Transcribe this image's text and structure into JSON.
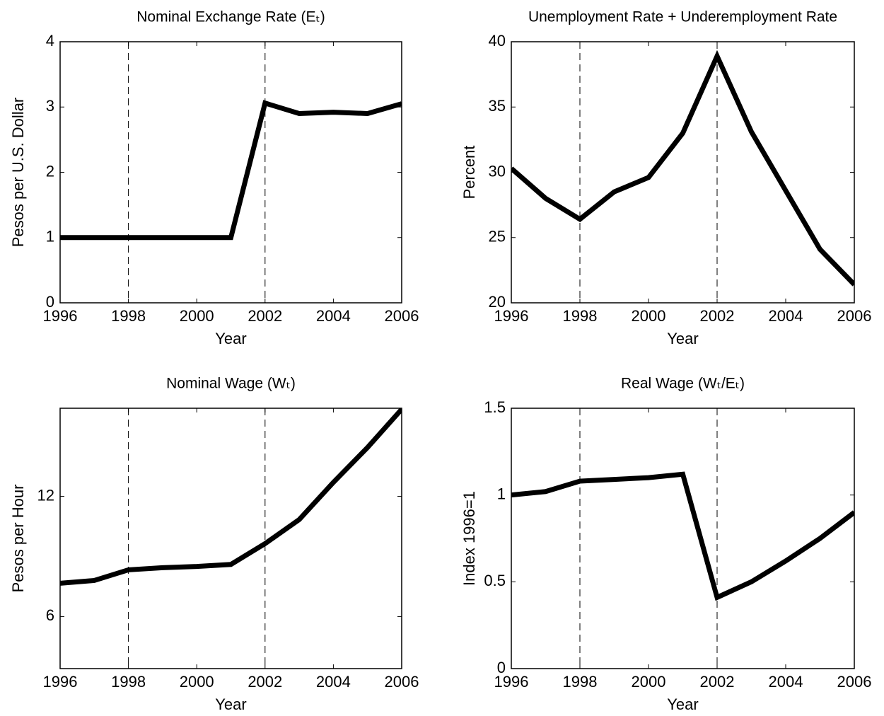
{
  "chart_data": [
    {
      "type": "line",
      "title": "Nominal Exchange Rate (Eₜ)",
      "xlabel": "Year",
      "ylabel": "Pesos per U.S. Dollar",
      "x": [
        1996,
        1997,
        1998,
        1999,
        2000,
        2001,
        2002,
        2003,
        2004,
        2005,
        2006
      ],
      "values": [
        1,
        1,
        1,
        1,
        1,
        1,
        3.06,
        2.9,
        2.92,
        2.9,
        3.05
      ],
      "color": "#000000",
      "xlim": [
        1996,
        2006
      ],
      "xticks": [
        1996,
        1998,
        2000,
        2002,
        2004,
        2006
      ],
      "ylim": [
        0,
        4
      ],
      "yticks": [
        0,
        1,
        2,
        3,
        4
      ],
      "vlines": [
        1998,
        2002
      ]
    },
    {
      "type": "line",
      "title": "Unemployment Rate  + Underemployment  Rate",
      "xlabel": "Year",
      "ylabel": "Percent",
      "x": [
        1996,
        1997,
        1998,
        1999,
        2000,
        2001,
        2002,
        2003,
        2004,
        2005,
        2006
      ],
      "values": [
        30.3,
        28.0,
        26.4,
        28.5,
        29.6,
        33.0,
        38.9,
        33.1,
        28.6,
        24.1,
        21.4
      ],
      "color": "#000000",
      "xlim": [
        1996,
        2006
      ],
      "xticks": [
        1996,
        1998,
        2000,
        2002,
        2004,
        2006
      ],
      "ylim": [
        20,
        40
      ],
      "yticks": [
        20,
        25,
        30,
        35,
        40
      ],
      "vlines": [
        1998,
        2002
      ]
    },
    {
      "type": "line",
      "title": "Nominal Wage (Wₜ)",
      "xlabel": "Year",
      "ylabel": "Pesos per Hour",
      "x": [
        1996,
        1997,
        1998,
        1999,
        2000,
        2001,
        2002,
        2003,
        2004,
        2005,
        2006
      ],
      "values": [
        7.66,
        7.8,
        8.33,
        8.44,
        8.5,
        8.6,
        9.64,
        10.84,
        12.7,
        14.44,
        16.35
      ],
      "color": "#000000",
      "xlim": [
        1996,
        2006
      ],
      "xticks": [
        1996,
        1998,
        2000,
        2002,
        2004,
        2006
      ],
      "ylim": [
        3.4,
        16.4
      ],
      "yticks": [
        6,
        12
      ],
      "vlines": [
        1998,
        2002
      ]
    },
    {
      "type": "line",
      "title": "Real Wage (Wₜ/Eₜ)",
      "xlabel": "Year",
      "ylabel": "Index 1996=1",
      "x": [
        1996,
        1997,
        1998,
        1999,
        2000,
        2001,
        2002,
        2003,
        2004,
        2005,
        2006
      ],
      "values": [
        1.0,
        1.02,
        1.08,
        1.09,
        1.1,
        1.12,
        0.41,
        0.5,
        0.62,
        0.75,
        0.9
      ],
      "color": "#000000",
      "xlim": [
        1996,
        2006
      ],
      "xticks": [
        1996,
        1998,
        2000,
        2002,
        2004,
        2006
      ],
      "ylim": [
        0,
        1.5
      ],
      "yticks": [
        0,
        0.5,
        1,
        1.5
      ],
      "vlines": [
        1998,
        2002
      ]
    }
  ]
}
